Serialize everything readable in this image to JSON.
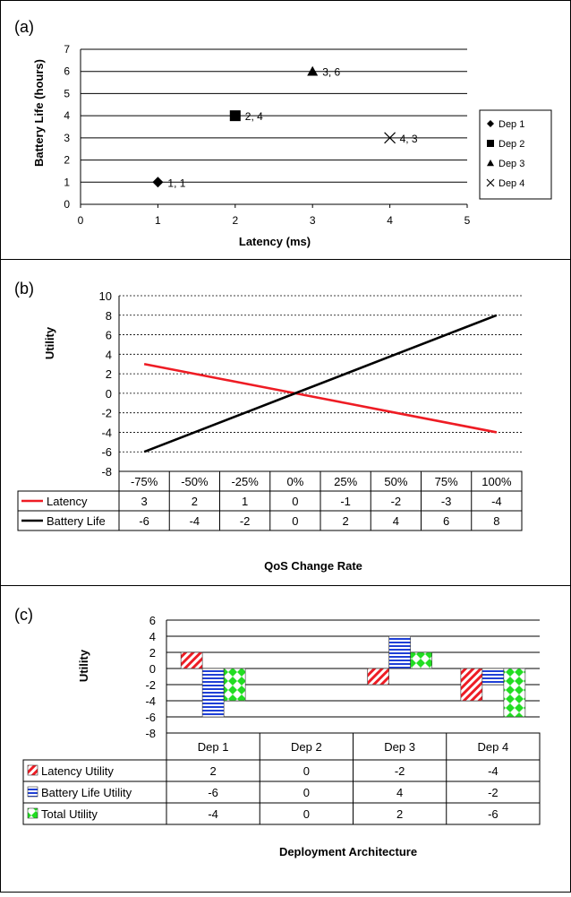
{
  "chart_data": [
    {
      "type": "scatter",
      "panel_label": "(a)",
      "xlabel": "Latency (ms)",
      "ylabel": "Battery Life (hours)",
      "xlim": [
        0,
        5
      ],
      "ylim": [
        0,
        7
      ],
      "xticks": [
        "0",
        "1",
        "2",
        "3",
        "4",
        "5"
      ],
      "yticks": [
        "0",
        "1",
        "2",
        "3",
        "4",
        "5",
        "6",
        "7"
      ],
      "grid": "horizontal",
      "legend_position": "right",
      "series": [
        {
          "name": "Dep 1",
          "marker": "diamond",
          "x": 1,
          "y": 1,
          "label": "1, 1"
        },
        {
          "name": "Dep 2",
          "marker": "square",
          "x": 2,
          "y": 4,
          "label": "2, 4"
        },
        {
          "name": "Dep 3",
          "marker": "triangle",
          "x": 3,
          "y": 6,
          "label": "3, 6"
        },
        {
          "name": "Dep 4",
          "marker": "x",
          "x": 4,
          "y": 3,
          "label": "4, 3"
        }
      ]
    },
    {
      "type": "line",
      "panel_label": "(b)",
      "xlabel": "QoS Change Rate",
      "ylabel": "Utility",
      "ylim": [
        -8,
        10
      ],
      "yticks": [
        "10",
        "8",
        "6",
        "4",
        "2",
        "0",
        "-2",
        "-4",
        "-6",
        "-8"
      ],
      "grid": "horizontal-dashed",
      "legend_position": "data-table",
      "categories": [
        "-75%",
        "-50%",
        "-25%",
        "0%",
        "25%",
        "50%",
        "75%",
        "100%"
      ],
      "series": [
        {
          "name": "Latency",
          "color": "#ee1c24",
          "values": [
            3,
            2,
            1,
            0,
            -1,
            -2,
            -3,
            -4
          ]
        },
        {
          "name": "Battery Life",
          "color": "#000000",
          "values": [
            -6,
            -4,
            -2,
            0,
            2,
            4,
            6,
            8
          ]
        }
      ]
    },
    {
      "type": "bar",
      "panel_label": "(c)",
      "xlabel": "Deployment Architecture",
      "ylabel": "Utility",
      "ylim": [
        -8,
        6
      ],
      "yticks": [
        "6",
        "4",
        "2",
        "0",
        "-2",
        "-4",
        "-6",
        "-8"
      ],
      "grid": "horizontal",
      "legend_position": "data-table",
      "categories": [
        "Dep 1",
        "Dep 2",
        "Dep 3",
        "Dep 4"
      ],
      "series": [
        {
          "name": "Latency Utility",
          "pattern": "red-diagonal",
          "values": [
            2,
            0,
            -2,
            -4
          ]
        },
        {
          "name": "Battery Life Utility",
          "pattern": "blue-horizontal",
          "values": [
            -6,
            0,
            4,
            -2
          ]
        },
        {
          "name": "Total Utility",
          "pattern": "green-diamond",
          "values": [
            -4,
            0,
            2,
            -6
          ]
        }
      ]
    }
  ]
}
